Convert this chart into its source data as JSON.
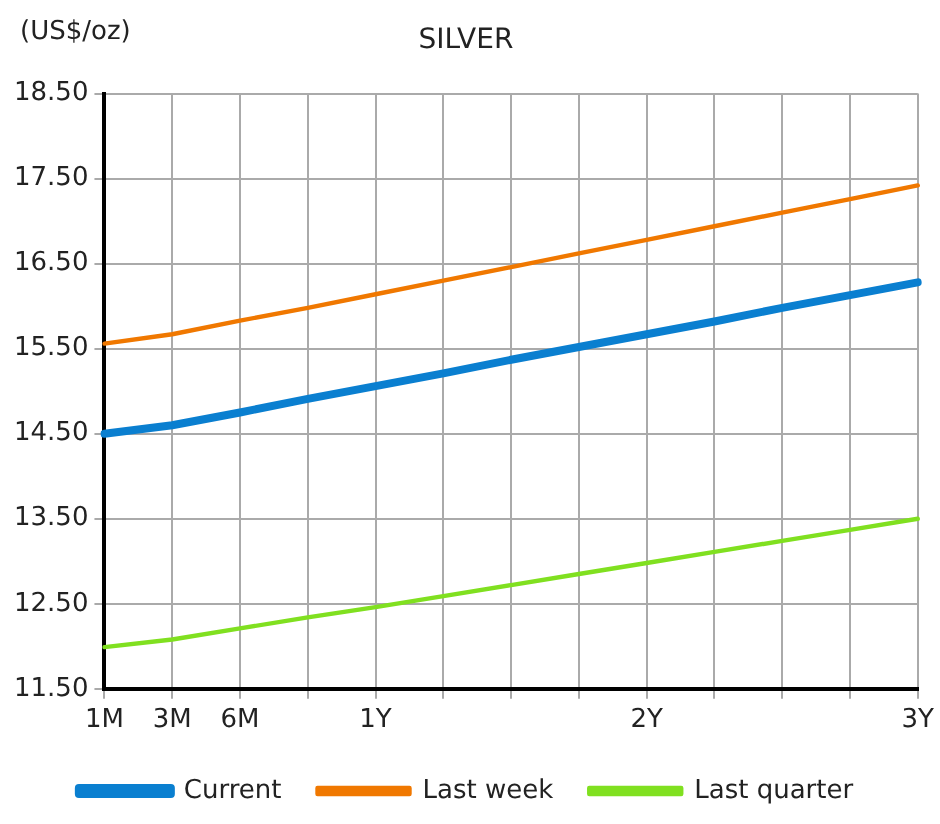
{
  "chart_data": {
    "type": "line",
    "title": "SILVER",
    "ylabel": "(US$/oz)",
    "categories": [
      "1M",
      "3M",
      "6M",
      null,
      "1Y",
      null,
      null,
      null,
      "2Y",
      null,
      null,
      null,
      "3Y"
    ],
    "series": [
      {
        "name": "Current",
        "color": "#0a7fd0",
        "values": [
          14.5,
          14.6,
          14.75,
          14.91,
          15.06,
          15.21,
          15.37,
          15.52,
          15.67,
          15.82,
          15.98,
          16.13,
          16.28
        ]
      },
      {
        "name": "Last week",
        "color": "#f07800",
        "values": [
          15.56,
          15.67,
          15.83,
          15.98,
          16.14,
          16.3,
          16.46,
          16.62,
          16.78,
          16.94,
          17.1,
          17.26,
          17.42
        ]
      },
      {
        "name": "Last quarter",
        "color": "#80e020",
        "values": [
          11.99,
          12.08,
          12.21,
          12.34,
          12.46,
          12.59,
          12.72,
          12.85,
          12.98,
          13.11,
          13.24,
          13.37,
          13.5
        ]
      }
    ],
    "ylim": [
      11.5,
      18.5
    ],
    "yticks": [
      {
        "value": 11.5,
        "label": "11.50"
      },
      {
        "value": 12.5,
        "label": "12.50"
      },
      {
        "value": 13.5,
        "label": "13.50"
      },
      {
        "value": 14.5,
        "label": "14.50"
      },
      {
        "value": 15.5,
        "label": "15.50"
      },
      {
        "value": 16.5,
        "label": "16.50"
      },
      {
        "value": 17.5,
        "label": "17.50"
      },
      {
        "value": 18.5,
        "label": "18.50"
      }
    ],
    "grid": true,
    "legend": "bottom",
    "marker": "none",
    "line_style": "solid"
  }
}
